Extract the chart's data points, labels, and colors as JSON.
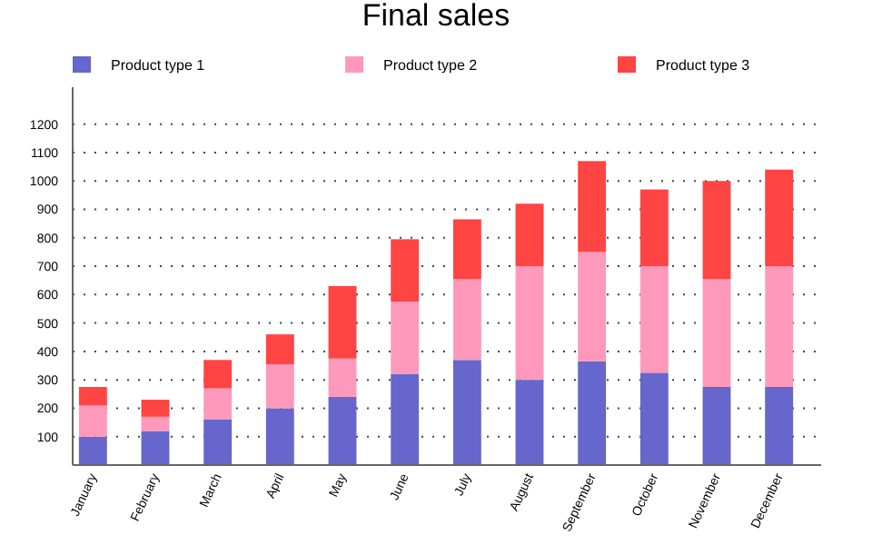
{
  "chart_data": {
    "type": "bar",
    "title": "Final sales",
    "stacked": true,
    "categories": [
      "January",
      "February",
      "March",
      "April",
      "May",
      "June",
      "July",
      "August",
      "September",
      "October",
      "November",
      "December"
    ],
    "series": [
      {
        "name": "Product type 1",
        "color": "#6666cc",
        "values": [
          100,
          120,
          160,
          200,
          240,
          320,
          370,
          300,
          365,
          325,
          275,
          275
        ]
      },
      {
        "name": "Product type 2",
        "color": "#ff99bb",
        "values": [
          110,
          50,
          110,
          155,
          135,
          255,
          285,
          400,
          385,
          375,
          380,
          425
        ]
      },
      {
        "name": "Product type 3",
        "color": "#ff4444",
        "values": [
          65,
          60,
          100,
          105,
          255,
          220,
          210,
          220,
          320,
          270,
          345,
          340
        ]
      }
    ],
    "ylim": [
      0,
      1330
    ],
    "yticks": [
      100,
      200,
      300,
      400,
      500,
      600,
      700,
      800,
      900,
      1000,
      1100,
      1200
    ],
    "grid": "y",
    "legend": "top"
  }
}
